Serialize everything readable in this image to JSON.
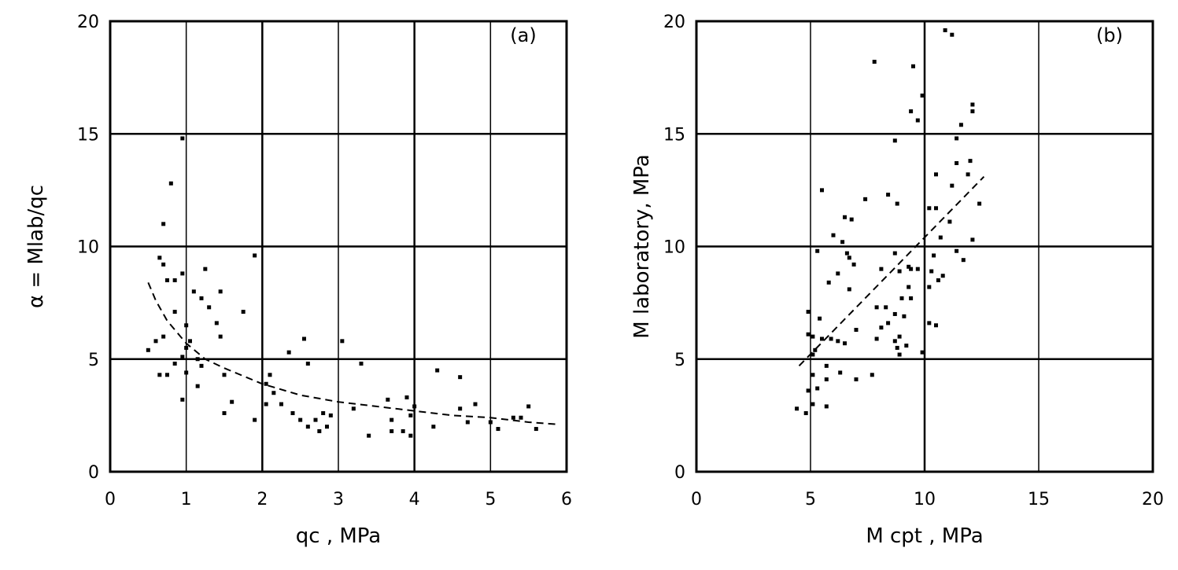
{
  "chart_data": [
    {
      "type": "scatter",
      "panel_label": "(a)",
      "xlabel": "qc , MPa",
      "ylabel": "α = Mlab/qc",
      "xlim": [
        0,
        6
      ],
      "ylim": [
        0,
        20
      ],
      "xticks": [
        "0",
        "1",
        "2",
        "3",
        "4",
        "5",
        "6"
      ],
      "yticks": [
        "0",
        "5",
        "10",
        "15",
        "20"
      ],
      "grid": true,
      "points": [
        [
          0.95,
          14.8
        ],
        [
          0.8,
          12.8
        ],
        [
          0.7,
          11.0
        ],
        [
          0.65,
          9.5
        ],
        [
          0.7,
          9.2
        ],
        [
          0.75,
          8.5
        ],
        [
          0.85,
          8.5
        ],
        [
          0.95,
          8.8
        ],
        [
          1.9,
          9.6
        ],
        [
          1.25,
          9.0
        ],
        [
          1.1,
          8.0
        ],
        [
          1.2,
          7.7
        ],
        [
          1.45,
          8.0
        ],
        [
          1.3,
          7.3
        ],
        [
          1.4,
          6.6
        ],
        [
          1.75,
          7.1
        ],
        [
          1.45,
          6.0
        ],
        [
          1.0,
          6.5
        ],
        [
          0.85,
          7.1
        ],
        [
          0.5,
          5.4
        ],
        [
          0.6,
          5.8
        ],
        [
          0.7,
          6.0
        ],
        [
          1.0,
          5.5
        ],
        [
          1.05,
          5.8
        ],
        [
          0.95,
          5.1
        ],
        [
          1.15,
          5.0
        ],
        [
          1.2,
          4.7
        ],
        [
          0.65,
          4.3
        ],
        [
          0.75,
          4.3
        ],
        [
          0.85,
          4.8
        ],
        [
          1.0,
          4.4
        ],
        [
          0.95,
          3.2
        ],
        [
          1.15,
          3.8
        ],
        [
          1.5,
          4.3
        ],
        [
          1.6,
          3.1
        ],
        [
          1.5,
          2.6
        ],
        [
          1.9,
          2.3
        ],
        [
          2.05,
          3.9
        ],
        [
          2.1,
          4.3
        ],
        [
          2.35,
          5.3
        ],
        [
          2.55,
          5.9
        ],
        [
          2.6,
          4.8
        ],
        [
          2.05,
          3.0
        ],
        [
          2.15,
          3.5
        ],
        [
          2.25,
          3.0
        ],
        [
          2.4,
          2.6
        ],
        [
          2.5,
          2.3
        ],
        [
          2.6,
          2.0
        ],
        [
          2.7,
          2.3
        ],
        [
          2.75,
          1.8
        ],
        [
          2.8,
          2.6
        ],
        [
          2.85,
          2.0
        ],
        [
          2.9,
          2.5
        ],
        [
          3.05,
          5.8
        ],
        [
          3.3,
          4.8
        ],
        [
          3.2,
          2.8
        ],
        [
          3.4,
          1.6
        ],
        [
          3.65,
          3.2
        ],
        [
          3.7,
          2.3
        ],
        [
          3.85,
          1.8
        ],
        [
          3.7,
          1.8
        ],
        [
          3.9,
          3.3
        ],
        [
          3.95,
          1.6
        ],
        [
          3.95,
          2.5
        ],
        [
          4.0,
          2.9
        ],
        [
          4.25,
          2.0
        ],
        [
          4.3,
          4.5
        ],
        [
          4.6,
          4.2
        ],
        [
          4.6,
          2.8
        ],
        [
          4.8,
          3.0
        ],
        [
          4.7,
          2.2
        ],
        [
          5.0,
          2.2
        ],
        [
          5.1,
          1.9
        ],
        [
          5.3,
          2.4
        ],
        [
          5.5,
          2.9
        ],
        [
          5.4,
          2.4
        ],
        [
          5.6,
          1.9
        ]
      ],
      "trend": {
        "style": "dashed",
        "x": [
          0.5,
          0.6,
          0.75,
          1,
          1.25,
          1.5,
          2,
          2.5,
          3,
          3.5,
          4,
          4.5,
          5,
          5.5,
          5.9
        ],
        "y": [
          8.4,
          7.6,
          6.7,
          5.7,
          5.0,
          4.6,
          3.9,
          3.4,
          3.1,
          2.9,
          2.7,
          2.5,
          2.4,
          2.2,
          2.1
        ]
      }
    },
    {
      "type": "scatter",
      "panel_label": "(b)",
      "xlabel": "M  cpt , MPa",
      "ylabel": "M  laboratory,  MPa",
      "xlim": [
        0,
        20
      ],
      "ylim": [
        0,
        20
      ],
      "xticks": [
        "0",
        "5",
        "10",
        "15",
        "20"
      ],
      "yticks": [
        "0",
        "5",
        "10",
        "15",
        "20"
      ],
      "grid": true,
      "points": [
        [
          10.9,
          19.6
        ],
        [
          11.2,
          19.4
        ],
        [
          7.8,
          18.2
        ],
        [
          9.5,
          18.0
        ],
        [
          9.9,
          16.7
        ],
        [
          9.4,
          16.0
        ],
        [
          9.7,
          15.6
        ],
        [
          12.1,
          16.3
        ],
        [
          12.1,
          16.0
        ],
        [
          11.6,
          15.4
        ],
        [
          11.4,
          14.8
        ],
        [
          8.7,
          14.7
        ],
        [
          11.4,
          13.7
        ],
        [
          12.0,
          13.8
        ],
        [
          10.5,
          13.2
        ],
        [
          11.9,
          13.2
        ],
        [
          11.2,
          12.7
        ],
        [
          5.5,
          12.5
        ],
        [
          7.4,
          12.1
        ],
        [
          8.4,
          12.3
        ],
        [
          8.8,
          11.9
        ],
        [
          12.4,
          11.9
        ],
        [
          10.2,
          11.7
        ],
        [
          10.5,
          11.7
        ],
        [
          6.5,
          11.3
        ],
        [
          6.8,
          11.2
        ],
        [
          11.1,
          11.1
        ],
        [
          6.0,
          10.5
        ],
        [
          6.4,
          10.2
        ],
        [
          10.7,
          10.4
        ],
        [
          12.1,
          10.3
        ],
        [
          5.3,
          9.8
        ],
        [
          6.6,
          9.7
        ],
        [
          6.7,
          9.5
        ],
        [
          6.9,
          9.2
        ],
        [
          8.7,
          9.7
        ],
        [
          10.4,
          9.6
        ],
        [
          11.4,
          9.8
        ],
        [
          11.7,
          9.4
        ],
        [
          8.1,
          9.0
        ],
        [
          8.9,
          8.9
        ],
        [
          9.3,
          9.1
        ],
        [
          9.4,
          9.0
        ],
        [
          9.7,
          9.0
        ],
        [
          10.3,
          8.9
        ],
        [
          10.6,
          8.5
        ],
        [
          10.8,
          8.7
        ],
        [
          6.2,
          8.8
        ],
        [
          5.8,
          8.4
        ],
        [
          6.7,
          8.1
        ],
        [
          9.3,
          8.2
        ],
        [
          9.0,
          7.7
        ],
        [
          9.4,
          7.7
        ],
        [
          10.2,
          8.2
        ],
        [
          7.9,
          7.3
        ],
        [
          8.3,
          7.3
        ],
        [
          8.7,
          7.0
        ],
        [
          9.1,
          6.9
        ],
        [
          8.4,
          6.6
        ],
        [
          8.1,
          6.4
        ],
        [
          10.2,
          6.6
        ],
        [
          10.5,
          6.5
        ],
        [
          4.9,
          7.1
        ],
        [
          5.4,
          6.8
        ],
        [
          7.0,
          6.3
        ],
        [
          4.9,
          6.1
        ],
        [
          5.1,
          6.0
        ],
        [
          5.5,
          5.9
        ],
        [
          5.9,
          5.9
        ],
        [
          6.2,
          5.8
        ],
        [
          6.5,
          5.7
        ],
        [
          7.9,
          5.9
        ],
        [
          8.7,
          5.8
        ],
        [
          8.9,
          6.0
        ],
        [
          9.2,
          5.6
        ],
        [
          8.8,
          5.5
        ],
        [
          8.9,
          5.2
        ],
        [
          9.9,
          5.3
        ],
        [
          5.2,
          5.4
        ],
        [
          5.1,
          5.2
        ],
        [
          5.7,
          4.7
        ],
        [
          6.3,
          4.4
        ],
        [
          5.1,
          4.3
        ],
        [
          5.7,
          4.1
        ],
        [
          7.0,
          4.1
        ],
        [
          7.7,
          4.3
        ],
        [
          5.3,
          3.7
        ],
        [
          4.9,
          3.6
        ],
        [
          5.1,
          3.0
        ],
        [
          5.7,
          2.9
        ],
        [
          4.4,
          2.8
        ],
        [
          4.8,
          2.6
        ]
      ],
      "trend": {
        "style": "dashed",
        "x": [
          4.5,
          12.6
        ],
        "y": [
          4.7,
          13.1
        ]
      }
    }
  ]
}
